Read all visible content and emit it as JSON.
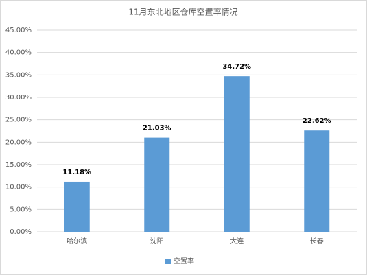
{
  "chart_data": {
    "type": "bar",
    "title": "11月东北地区仓库空置率情况",
    "categories": [
      "哈尔滨",
      "沈阳",
      "大连",
      "长春"
    ],
    "series": [
      {
        "name": "空置率",
        "color": "#5b9bd5",
        "values": [
          11.18,
          21.03,
          34.72,
          22.62
        ],
        "value_labels": [
          "11.18%",
          "21.03%",
          "34.72%",
          "22.62%"
        ]
      }
    ],
    "ylim": [
      0,
      45
    ],
    "yticks": [
      {
        "value": 0,
        "label": "0.00%"
      },
      {
        "value": 5,
        "label": "5.00%"
      },
      {
        "value": 10,
        "label": "10.00%"
      },
      {
        "value": 15,
        "label": "15.00%"
      },
      {
        "value": 20,
        "label": "20.00%"
      },
      {
        "value": 25,
        "label": "25.00%"
      },
      {
        "value": 30,
        "label": "30.00%"
      },
      {
        "value": 35,
        "label": "35.00%"
      },
      {
        "value": 40,
        "label": "40.00%"
      },
      {
        "value": 45,
        "label": "45.00%"
      }
    ],
    "grid": true,
    "legend": "bottom"
  }
}
